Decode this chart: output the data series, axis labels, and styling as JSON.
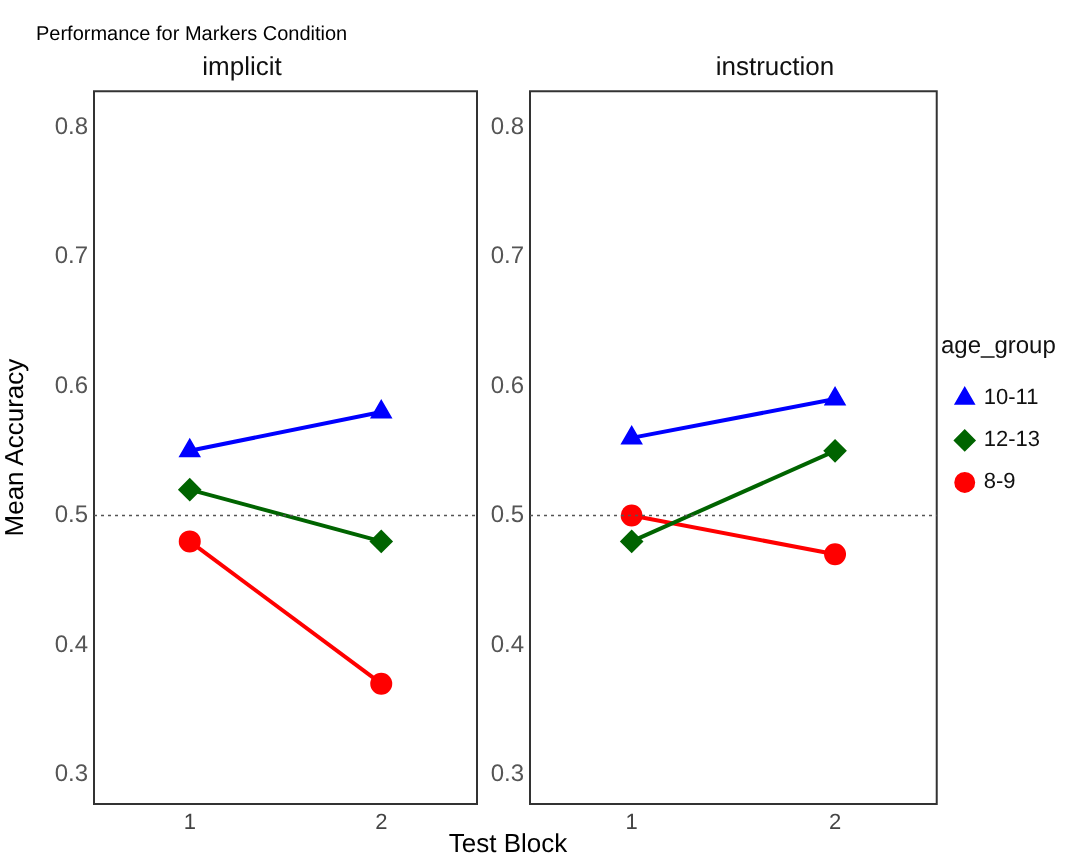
{
  "chart_data": [
    {
      "type": "line",
      "title": "Performance for Markers Condition",
      "subtitle": "implicit",
      "xlabel": "Test Block",
      "ylabel": "Mean Accuracy",
      "categories": [
        "1",
        "2"
      ],
      "ylim": [
        0.277,
        0.828
      ],
      "yticks": [
        0.3,
        0.4,
        0.5,
        0.6,
        0.7,
        0.8
      ],
      "grid": false,
      "series": [
        {
          "color": "#0000ff",
          "marker": "triangle",
          "values": [
            0.55,
            0.58
          ]
        },
        {
          "color": "#006400",
          "marker": "diamond",
          "values": [
            0.52,
            0.48
          ]
        },
        {
          "color": "#ff0000",
          "marker": "circle",
          "values": [
            0.48,
            0.37
          ]
        }
      ],
      "ref_lines": [
        {
          "axis": "y",
          "value": 0.5,
          "color": "#555555",
          "line_style": "dotted"
        }
      ]
    },
    {
      "type": "line",
      "subtitle": "instruction",
      "legend_title": "age_group",
      "legend": "right",
      "categories": [
        "1",
        "2"
      ],
      "ylim": [
        0.277,
        0.828
      ],
      "yticks": [
        0.3,
        0.4,
        0.5,
        0.6,
        0.7,
        0.8
      ],
      "grid": false,
      "series": [
        {
          "name": "10-11",
          "color": "#0000ff",
          "marker": "triangle",
          "values": [
            0.56,
            0.59
          ]
        },
        {
          "name": "12-13",
          "color": "#006400",
          "marker": "diamond",
          "values": [
            0.48,
            0.55
          ]
        },
        {
          "name": "8-9",
          "color": "#ff0000",
          "marker": "circle",
          "values": [
            0.5,
            0.47
          ]
        }
      ],
      "ref_lines": [
        {
          "axis": "y",
          "value": 0.5,
          "color": "#555555",
          "line_style": "dotted"
        }
      ]
    }
  ]
}
